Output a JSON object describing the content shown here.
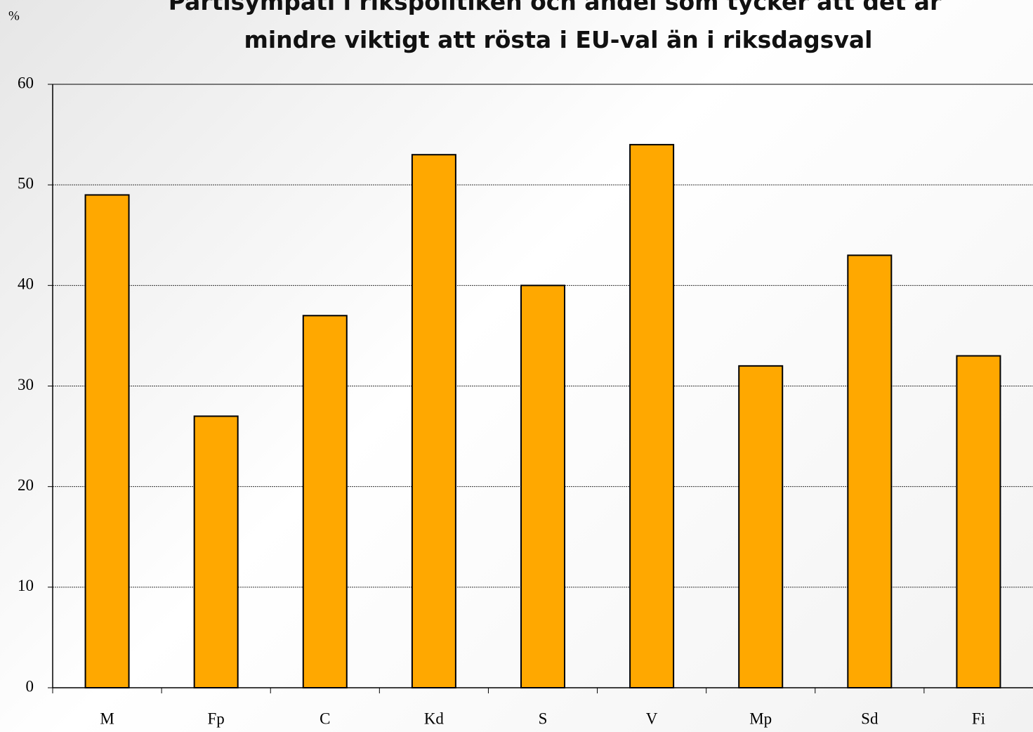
{
  "chart_data": {
    "type": "bar",
    "title": [
      "Partisympati i rikspolitiken och andel som tycker att det är",
      "mindre viktigt att rösta i EU-val än i riksdagsval"
    ],
    "y_label": "%",
    "categories": [
      "M",
      "Fp",
      "C",
      "Kd",
      "S",
      "V",
      "Mp",
      "Sd",
      "Fi"
    ],
    "values": [
      49,
      27,
      37,
      53,
      40,
      54,
      32,
      43,
      33
    ],
    "color": "#ffa800",
    "ylim": [
      0,
      60
    ],
    "yticks": [
      0,
      10,
      20,
      30,
      40,
      50,
      60
    ],
    "grid": true
  }
}
